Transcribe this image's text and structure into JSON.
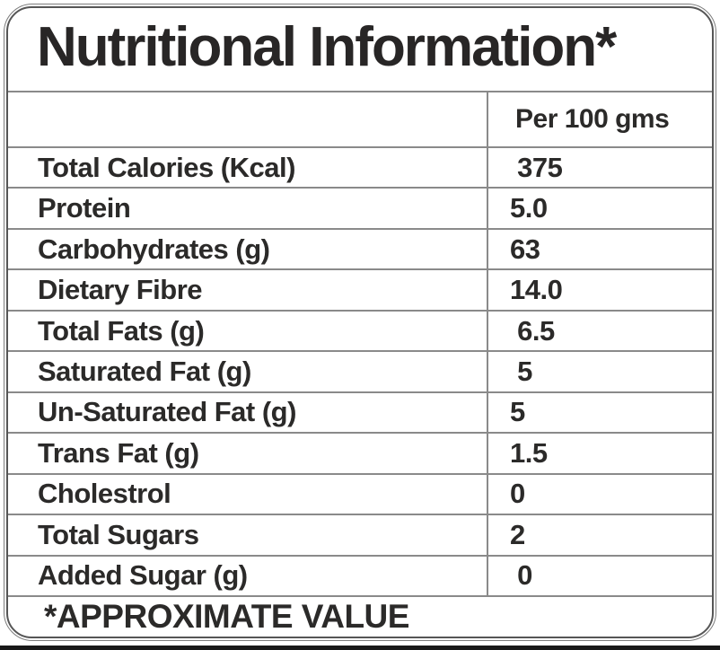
{
  "label": {
    "title": "Nutritional Information*",
    "column_header": "Per 100 gms",
    "rows": [
      {
        "name": "Total Calories (Kcal)",
        "value": " 375"
      },
      {
        "name": "Protein",
        "value": "5.0"
      },
      {
        "name": "Carbohydrates (g)",
        "value": "63"
      },
      {
        "name": "Dietary Fibre",
        "value": "14.0"
      },
      {
        "name": "Total Fats (g)",
        "value": " 6.5"
      },
      {
        "name": "Saturated Fat (g)",
        "value": " 5"
      },
      {
        "name": "Un-Saturated Fat (g)",
        "value": "5"
      },
      {
        "name": "Trans Fat (g)",
        "value": "1.5"
      },
      {
        "name": "Cholestrol",
        "value": "0"
      },
      {
        "name": "Total Sugars",
        "value": "2"
      },
      {
        "name": "Added Sugar (g)",
        "value": " 0"
      }
    ],
    "footnote": "*APPROXIMATE VALUE",
    "colors": {
      "text": "#2b2a29",
      "grid_line": "#8a8a8a",
      "border": "#565656",
      "background": "#ffffff",
      "bottom_edge": "#181818"
    }
  }
}
